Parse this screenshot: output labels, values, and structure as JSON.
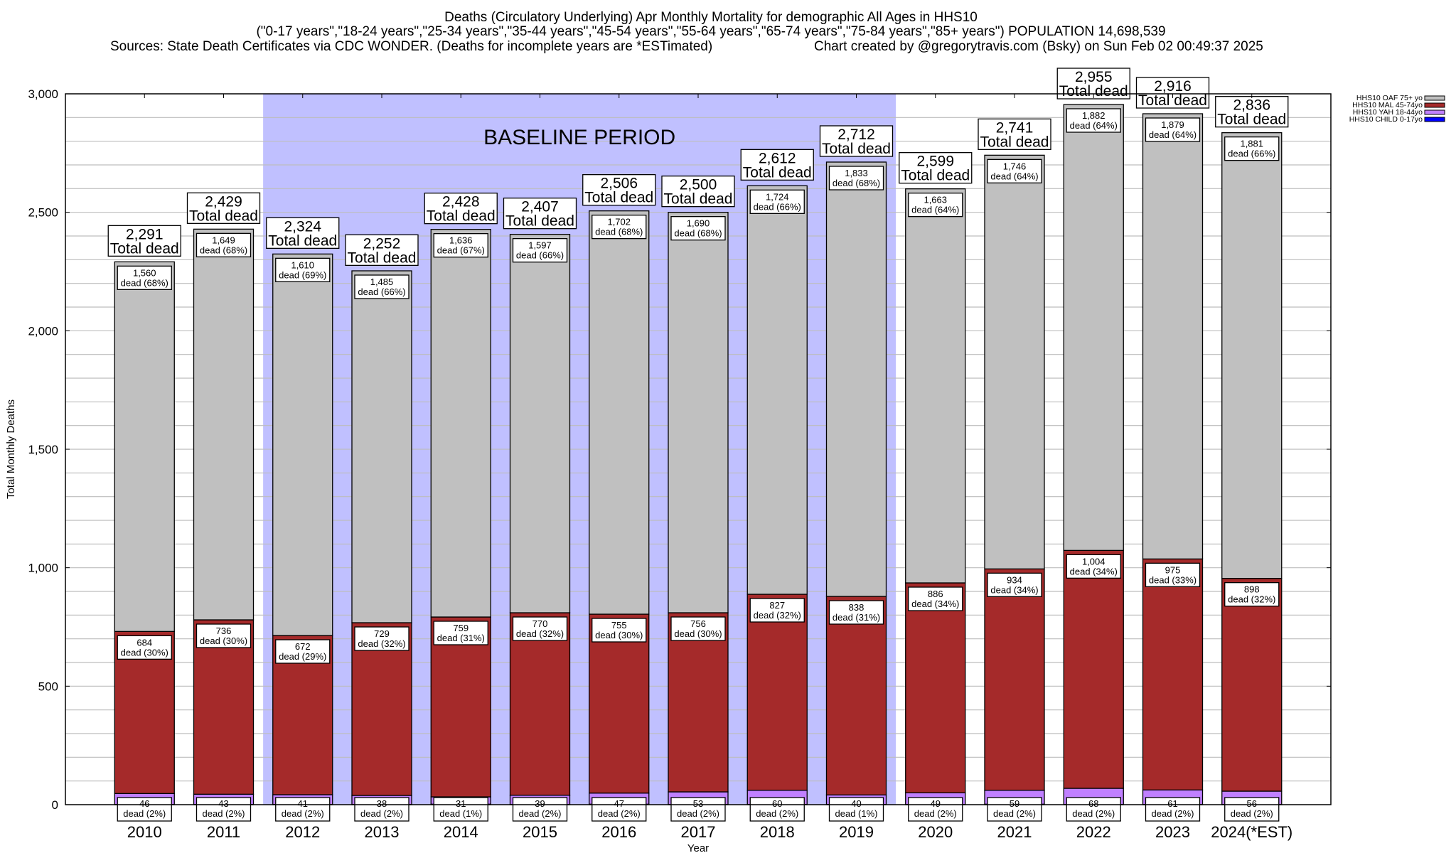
{
  "chart_data": {
    "type": "bar",
    "stacked": true,
    "title_lines": [
      "Deaths (Circulatory Underlying) Apr Monthly Mortality for demographic All Ages in HHS10",
      "(\"0-17 years\",\"18-24 years\",\"25-34 years\",\"35-44 years\",\"45-54 years\",\"55-64 years\",\"65-74 years\",\"75-84 years\",\"85+ years\") POPULATION 14,698,539"
    ],
    "sources": "Sources: State Death Certificates via CDC WONDER. (Deaths for incomplete years are *ESTimated)",
    "credit": "Chart created by @gregorytravis.com (Bsky) on Sun Feb 02 00:49:37 2025",
    "xlabel": "Year",
    "ylabel": "Total Monthly Deaths",
    "ylim": [
      0,
      3000
    ],
    "yticks": [
      0,
      500,
      1000,
      1500,
      2000,
      2500,
      3000
    ],
    "ytick_labels": [
      "0",
      "500",
      "1,000",
      "1,500",
      "2,000",
      "2,500",
      "3,000"
    ],
    "grid": true,
    "grid_step": 100,
    "legend_position": "top-right",
    "baseline": {
      "label": "BASELINE PERIOD",
      "from": "2012",
      "to": "2019"
    },
    "total_suffix": "Total dead",
    "categories": [
      "2010",
      "2011",
      "2012",
      "2013",
      "2014",
      "2015",
      "2016",
      "2017",
      "2018",
      "2019",
      "2020",
      "2021",
      "2022",
      "2023",
      "2024(*EST)"
    ],
    "totals": [
      2291,
      2429,
      2324,
      2252,
      2428,
      2407,
      2506,
      2500,
      2612,
      2712,
      2599,
      2741,
      2955,
      2916,
      2836
    ],
    "total_labels": [
      "2,291",
      "2,429",
      "2,324",
      "2,252",
      "2,428",
      "2,407",
      "2,506",
      "2,500",
      "2,612",
      "2,712",
      "2,599",
      "2,741",
      "2,955",
      "2,916",
      "2,836"
    ],
    "series": [
      {
        "name": "HHS10 CHILD 0-17yo",
        "color": "#0000ff",
        "values": [
          1,
          1,
          1,
          1,
          2,
          1,
          2,
          1,
          1,
          1,
          1,
          2,
          1,
          1,
          1
        ]
      },
      {
        "name": "HHS10 YAH 18-44yo",
        "color": "#c080ff",
        "values": [
          46,
          43,
          41,
          38,
          31,
          39,
          47,
          53,
          60,
          40,
          49,
          59,
          68,
          61,
          56
        ],
        "labels": [
          "46",
          "43",
          "41",
          "38",
          "31",
          "39",
          "47",
          "53",
          "60",
          "40",
          "49",
          "59",
          "68",
          "61",
          "56"
        ],
        "pct_labels": [
          "dead (2%)",
          "dead (2%)",
          "dead (2%)",
          "dead (2%)",
          "dead (1%)",
          "dead (2%)",
          "dead (2%)",
          "dead (2%)",
          "dead (2%)",
          "dead (1%)",
          "dead (2%)",
          "dead (2%)",
          "dead (2%)",
          "dead (2%)",
          "dead (2%)"
        ]
      },
      {
        "name": "HHS10 MAL 45-74yo",
        "color": "#a52a2a",
        "values": [
          684,
          736,
          672,
          729,
          759,
          770,
          755,
          756,
          827,
          838,
          886,
          934,
          1004,
          975,
          898
        ],
        "labels": [
          "684",
          "736",
          "672",
          "729",
          "759",
          "770",
          "755",
          "756",
          "827",
          "838",
          "886",
          "934",
          "1,004",
          "975",
          "898"
        ],
        "pct_labels": [
          "dead (30%)",
          "dead (30%)",
          "dead (29%)",
          "dead (32%)",
          "dead (31%)",
          "dead (32%)",
          "dead (30%)",
          "dead (30%)",
          "dead (32%)",
          "dead (31%)",
          "dead (34%)",
          "dead (34%)",
          "dead (34%)",
          "dead (33%)",
          "dead (32%)"
        ]
      },
      {
        "name": "HHS10 OAF 75+ yo",
        "color": "#c0c0c0",
        "values": [
          1560,
          1649,
          1610,
          1485,
          1636,
          1597,
          1702,
          1690,
          1724,
          1833,
          1663,
          1746,
          1882,
          1879,
          1881
        ],
        "labels": [
          "1,560",
          "1,649",
          "1,610",
          "1,485",
          "1,636",
          "1,597",
          "1,702",
          "1,690",
          "1,724",
          "1,833",
          "1,663",
          "1,746",
          "1,882",
          "1,879",
          "1,881"
        ],
        "pct_labels": [
          "dead (68%)",
          "dead (68%)",
          "dead (69%)",
          "dead (66%)",
          "dead (67%)",
          "dead (66%)",
          "dead (68%)",
          "dead (68%)",
          "dead (66%)",
          "dead (68%)",
          "dead (64%)",
          "dead (64%)",
          "dead (64%)",
          "dead (64%)",
          "dead (66%)"
        ]
      }
    ],
    "legend_order": [
      "HHS10 OAF 75+ yo",
      "HHS10 MAL 45-74yo",
      "HHS10 YAH 18-44yo",
      "HHS10 CHILD 0-17yo"
    ],
    "baseline_color": "#c0c0ff"
  }
}
